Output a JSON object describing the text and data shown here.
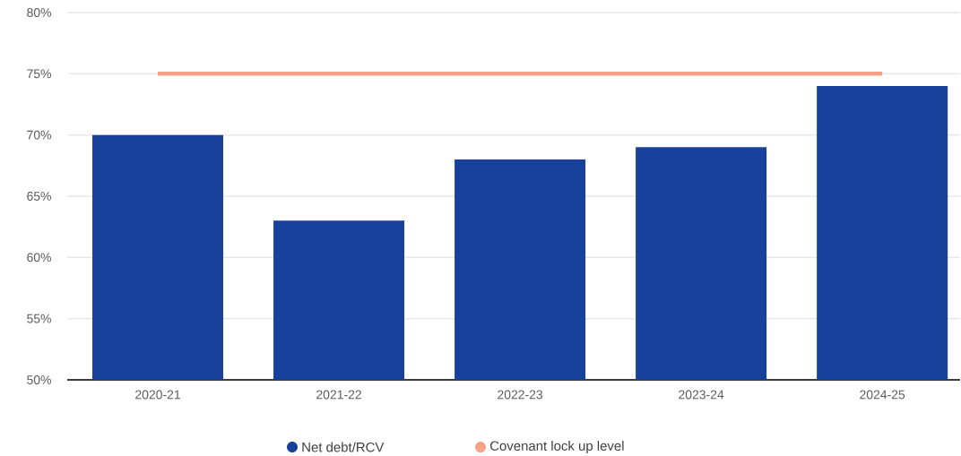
{
  "chart_data": {
    "type": "bar",
    "categories": [
      "2020-21",
      "2021-22",
      "2022-23",
      "2023-24",
      "2024-25"
    ],
    "series": [
      {
        "name": "Net debt/RCV",
        "color": "#17419a",
        "values": [
          70,
          63,
          68,
          69,
          74
        ]
      },
      {
        "name": "Covenant lock up level",
        "type": "line",
        "color": "#f4a186",
        "values": [
          75,
          75,
          75,
          75,
          75
        ]
      }
    ],
    "ylim": [
      50,
      80
    ],
    "yticks": [
      {
        "value": 50,
        "label": "50%"
      },
      {
        "value": 55,
        "label": "55%"
      },
      {
        "value": 60,
        "label": "60%"
      },
      {
        "value": 65,
        "label": "65%"
      },
      {
        "value": 70,
        "label": "70%"
      },
      {
        "value": 75,
        "label": "75%"
      },
      {
        "value": 80,
        "label": "80%"
      }
    ],
    "grid": "y",
    "legend": "bottom",
    "marker": "none"
  }
}
